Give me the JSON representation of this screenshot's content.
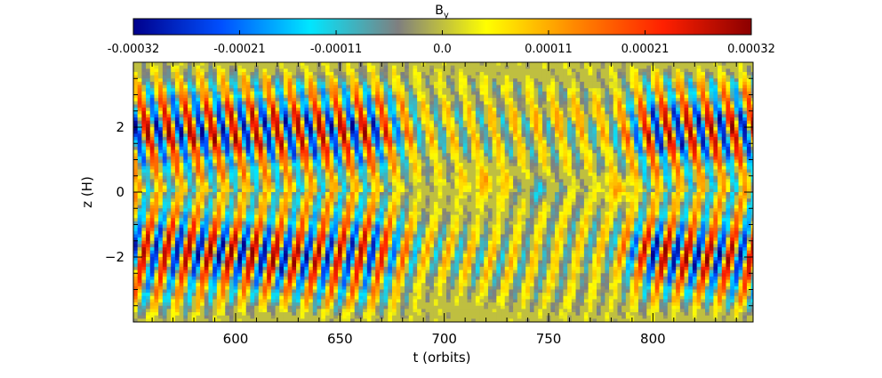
{
  "chart_data": {
    "type": "heatmap",
    "title": "",
    "colorbar": {
      "label": "B",
      "label_subscript": "y",
      "min": -0.00032,
      "max": 0.00032,
      "ticks": [
        -0.00032,
        -0.00021,
        -0.00011,
        0.0,
        0.00011,
        0.00021,
        0.00032
      ],
      "tick_labels": [
        "-0.00032",
        "-0.00021",
        "-0.00011",
        "0.0",
        "0.00011",
        "0.00021",
        "0.00032"
      ],
      "colors": [
        "#00008c",
        "#0050ff",
        "#00e6ff",
        "#7f7f7f",
        "#ffff00",
        "#ff8800",
        "#ff2000",
        "#8b0000"
      ]
    },
    "xlabel": "t (orbits)",
    "ylabel": "z (H)",
    "xlim": [
      551,
      848
    ],
    "ylim": [
      -4,
      4
    ],
    "x_ticks": [
      600,
      650,
      700,
      750,
      800
    ],
    "x_tick_labels": [
      "600",
      "650",
      "700",
      "750",
      "800"
    ],
    "y_ticks": [
      -2,
      0,
      2
    ],
    "y_tick_labels": [
      "−2",
      "0",
      "2"
    ],
    "description_of_field": "Butterfly-like diagonal bands of alternating sign, strong (about ±0.0003) near |z|=2 H for t<665 and t>790, weak and mostly near zero between t=665 and t=790."
  }
}
